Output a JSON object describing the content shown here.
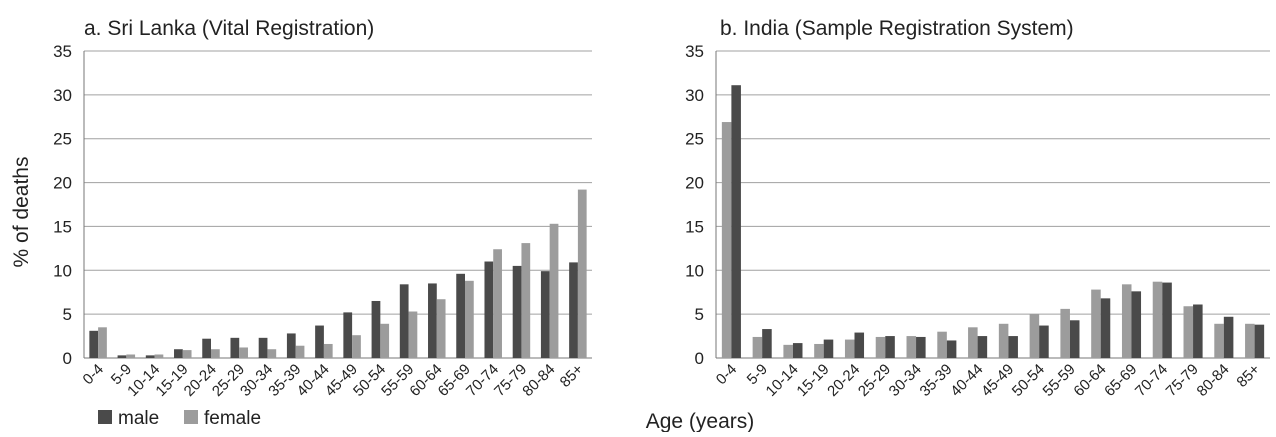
{
  "ylabel": "% of deaths",
  "xlabel": "Age (years)",
  "legend": {
    "male": "male",
    "female": "female",
    "male_color": "#4a4a4a",
    "female_color": "#9c9c9c"
  },
  "chart_data": [
    {
      "type": "bar",
      "title": "a. Sri Lanka (Vital Registration)",
      "categories": [
        "0-4",
        "5-9",
        "10-14",
        "15-19",
        "20-24",
        "25-29",
        "30-34",
        "35-39",
        "40-44",
        "45-49",
        "50-54",
        "55-59",
        "60-64",
        "65-69",
        "70-74",
        "75-79",
        "80-84",
        "85+"
      ],
      "bar_order": [
        "male",
        "female"
      ],
      "series": [
        {
          "name": "male",
          "values": [
            3.1,
            0.3,
            0.3,
            1.0,
            2.2,
            2.3,
            2.3,
            2.8,
            3.7,
            5.2,
            6.5,
            8.4,
            8.5,
            9.6,
            11.0,
            10.5,
            9.9,
            10.9
          ]
        },
        {
          "name": "female",
          "values": [
            3.5,
            0.4,
            0.4,
            0.9,
            1.0,
            1.2,
            1.0,
            1.4,
            1.6,
            2.6,
            3.9,
            5.3,
            6.7,
            8.8,
            12.4,
            13.1,
            15.3,
            19.2
          ]
        }
      ],
      "ylim": [
        0,
        35
      ],
      "yticks": [
        0,
        5,
        10,
        15,
        20,
        25,
        30,
        35
      ],
      "grid": true
    },
    {
      "type": "bar",
      "title": "b. India (Sample Registration System)",
      "categories": [
        "0-4",
        "5-9",
        "10-14",
        "15-19",
        "20-24",
        "25-29",
        "30-34",
        "35-39",
        "40-44",
        "45-49",
        "50-54",
        "55-59",
        "60-64",
        "65-69",
        "70-74",
        "75-79",
        "80-84",
        "85+"
      ],
      "bar_order": [
        "female",
        "male"
      ],
      "series": [
        {
          "name": "male",
          "values": [
            31.1,
            3.3,
            1.7,
            2.1,
            2.9,
            2.5,
            2.4,
            2.0,
            2.5,
            2.5,
            3.7,
            4.3,
            6.8,
            7.6,
            8.6,
            6.1,
            4.7,
            3.8
          ]
        },
        {
          "name": "female",
          "values": [
            26.9,
            2.4,
            1.5,
            1.6,
            2.1,
            2.4,
            2.5,
            3.0,
            3.5,
            3.9,
            5.0,
            5.6,
            7.8,
            8.4,
            8.7,
            5.9,
            3.9,
            3.9
          ]
        }
      ],
      "ylim": [
        0,
        35
      ],
      "yticks": [
        0,
        5,
        10,
        15,
        20,
        25,
        30,
        35
      ],
      "grid": true
    }
  ]
}
